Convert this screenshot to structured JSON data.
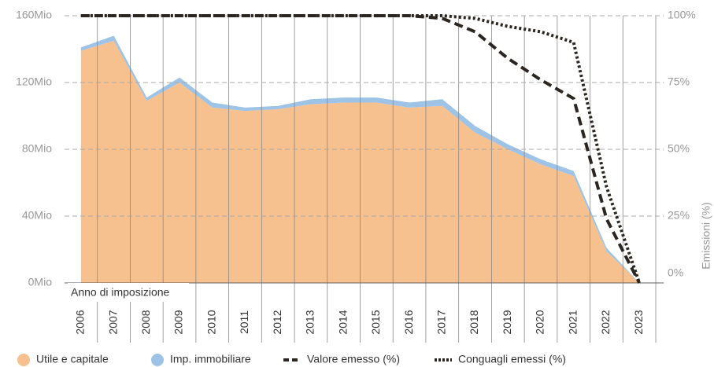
{
  "chart_data": {
    "type": "area_line",
    "categories": [
      "2006",
      "2007",
      "2008",
      "2009",
      "2010",
      "2011",
      "2012",
      "2013",
      "2014",
      "2015",
      "2016",
      "2017",
      "2018",
      "2019",
      "2020",
      "2021",
      "2022",
      "2023"
    ],
    "x_label": "Anno di imposizione",
    "y2_label": "Emissioni (%)",
    "series": [
      {
        "name": "Utile e capitale",
        "color": "#f7c08f",
        "values": [
          139,
          145,
          109,
          120,
          105,
          103,
          104,
          107,
          108,
          108,
          105,
          106,
          90,
          80,
          71,
          64,
          19,
          0
        ]
      },
      {
        "name": "Imp. immobiliare",
        "color": "#9dc3e6",
        "values": [
          2,
          3,
          2,
          3,
          3,
          2,
          2,
          3,
          3,
          3,
          3,
          4,
          4,
          3,
          3,
          3,
          2,
          0
        ]
      },
      {
        "name": "Valore emesso (%)",
        "color": "#2b2620",
        "axis": "y2",
        "style": "dashed",
        "values": [
          100,
          100,
          100,
          100,
          100,
          100,
          100,
          100,
          100,
          100,
          100,
          99,
          94,
          84,
          76,
          69,
          24,
          0
        ]
      },
      {
        "name": "Conguagli emessi (%)",
        "color": "#2b2620",
        "axis": "y2",
        "style": "dotted",
        "values": [
          100,
          100,
          100,
          100,
          100,
          100,
          100,
          100,
          100,
          100,
          100,
          100,
          99,
          96,
          94,
          90,
          36,
          0
        ]
      }
    ],
    "ylim": [
      0,
      160
    ],
    "yticks": [
      {
        "value": 0,
        "label": "0Mio"
      },
      {
        "value": 40,
        "label": "40Mio"
      },
      {
        "value": 80,
        "label": "80Mio"
      },
      {
        "value": 120,
        "label": "120Mio"
      },
      {
        "value": 160,
        "label": "160Mio"
      }
    ],
    "y2lim": [
      0,
      100
    ],
    "y2ticks": [
      {
        "value": 0,
        "label": "0%"
      },
      {
        "value": 25,
        "label": "25%"
      },
      {
        "value": 50,
        "label": "50%"
      },
      {
        "value": 75,
        "label": "75%"
      },
      {
        "value": 100,
        "label": "100%"
      }
    ],
    "grid": true
  }
}
